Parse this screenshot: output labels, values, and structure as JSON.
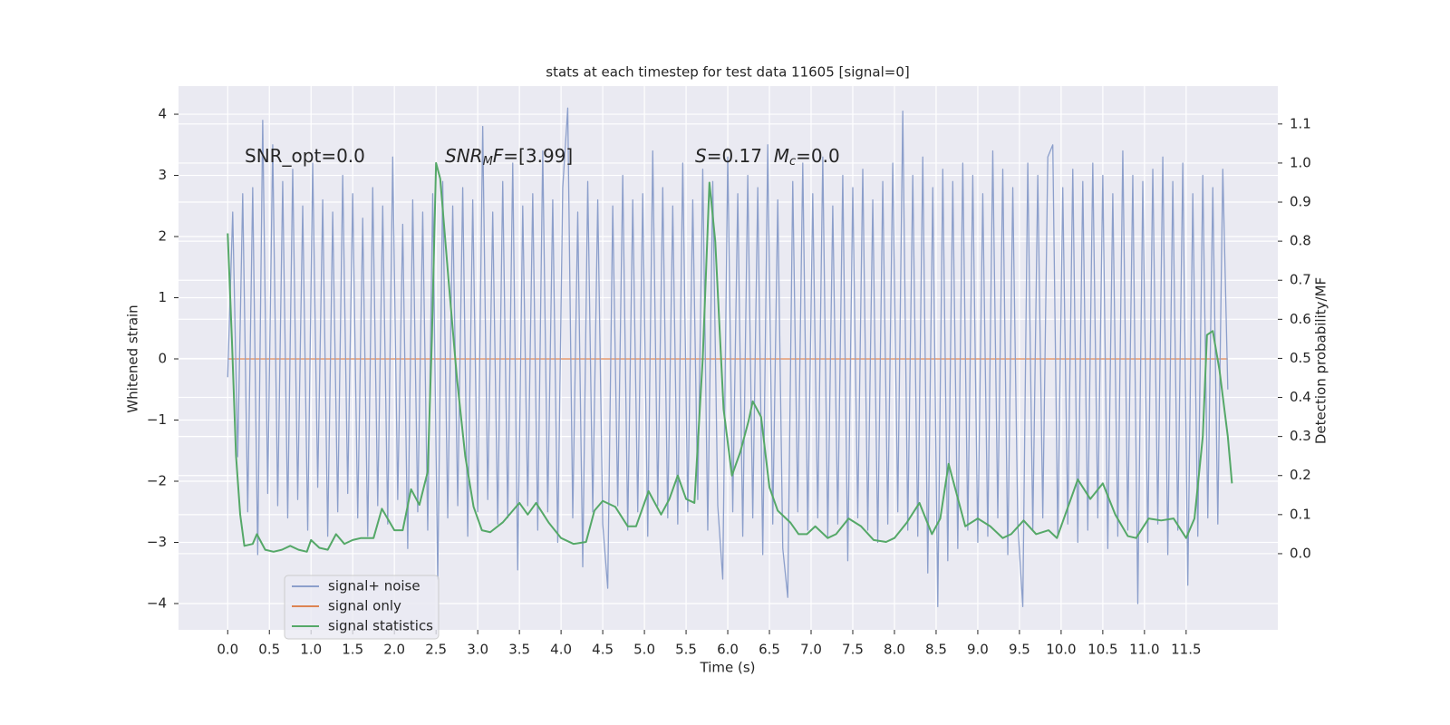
{
  "chart_data": {
    "type": "line",
    "title": "stats at each timestep for test data 11605 [signal=0]",
    "xlabel": "Time (s)",
    "ylabel": "Whitened strain",
    "y2label": "Detection probability/MF",
    "annotations": [
      [
        "SNR_opt=0.0"
      ],
      [
        "SNR",
        "M",
        "F",
        "=[3.99]"
      ],
      [
        "S",
        "=0.17  ",
        "M",
        "c",
        "=0.0"
      ]
    ],
    "grid": true,
    "legend": "lower left",
    "xlim": [
      -0.59,
      12.6
    ],
    "ylim": [
      -4.43,
      4.46
    ],
    "y2lim": [
      -0.195,
      1.197
    ],
    "xticks": [
      {
        "value": 0,
        "label": "0.0"
      },
      0.5,
      {
        "value": 1,
        "label": "1.0"
      },
      1.5,
      {
        "value": 2,
        "label": "2.0"
      },
      2.5,
      {
        "value": 3,
        "label": "3.0"
      },
      3.5,
      {
        "value": 4,
        "label": "4.0"
      },
      4.5,
      {
        "value": 5,
        "label": "5.0"
      },
      5.5,
      {
        "value": 6,
        "label": "6.0"
      },
      6.5,
      {
        "value": 7,
        "label": "7.0"
      },
      7.5,
      {
        "value": 8,
        "label": "8.0"
      },
      8.5,
      {
        "value": 9,
        "label": "9.0"
      },
      9.5,
      {
        "value": 10,
        "label": "10.0"
      },
      10.5,
      {
        "value": 11,
        "label": "11.0"
      },
      11.5
    ],
    "yticks": [
      {
        "value": -4,
        "label": "−4"
      },
      {
        "value": -3,
        "label": "−3"
      },
      {
        "value": -2,
        "label": "−2"
      },
      {
        "value": -1,
        "label": "−1"
      },
      0,
      1,
      2,
      3,
      4
    ],
    "y2ticks": [
      {
        "value": 0,
        "label": "0.0"
      },
      0.1,
      0.2,
      0.3,
      0.4,
      0.5,
      0.6,
      0.7,
      0.8,
      0.9,
      {
        "value": 1,
        "label": "1.0"
      },
      1.1
    ],
    "series": [
      {
        "name": "signal only",
        "color": "#dd8452",
        "x": [
          0,
          12.0
        ],
        "values": [
          0,
          0
        ]
      },
      {
        "name": "signal+ noise",
        "color": "#8c9fcb",
        "x": [
          0,
          0.06,
          0.12,
          0.18,
          0.24,
          0.3,
          0.36,
          0.42,
          0.48,
          0.54,
          0.6,
          0.66,
          0.72,
          0.78,
          0.84,
          0.9,
          0.96,
          1.02,
          1.08,
          1.14,
          1.2,
          1.26,
          1.32,
          1.38,
          1.44,
          1.5,
          1.56,
          1.62,
          1.68,
          1.74,
          1.8,
          1.86,
          1.92,
          1.98,
          2.04,
          2.1,
          2.16,
          2.22,
          2.28,
          2.34,
          2.4,
          2.46,
          2.52,
          2.58,
          2.64,
          2.7,
          2.76,
          2.82,
          2.88,
          2.94,
          3.0,
          3.06,
          3.12,
          3.18,
          3.24,
          3.3,
          3.36,
          3.42,
          3.48,
          3.54,
          3.6,
          3.66,
          3.72,
          3.78,
          3.84,
          3.9,
          3.96,
          4.02,
          4.08,
          4.14,
          4.2,
          4.26,
          4.32,
          4.38,
          4.44,
          4.5,
          4.56,
          4.62,
          4.68,
          4.74,
          4.8,
          4.86,
          4.92,
          4.98,
          5.04,
          5.1,
          5.16,
          5.22,
          5.28,
          5.34,
          5.4,
          5.46,
          5.52,
          5.58,
          5.64,
          5.7,
          5.76,
          5.82,
          5.88,
          5.94,
          6.0,
          6.06,
          6.12,
          6.18,
          6.24,
          6.3,
          6.36,
          6.42,
          6.48,
          6.54,
          6.6,
          6.66,
          6.72,
          6.78,
          6.84,
          6.9,
          6.96,
          7.02,
          7.08,
          7.14,
          7.2,
          7.26,
          7.32,
          7.38,
          7.44,
          7.5,
          7.56,
          7.62,
          7.68,
          7.74,
          7.8,
          7.86,
          7.92,
          7.98,
          8.04,
          8.1,
          8.16,
          8.22,
          8.28,
          8.34,
          8.4,
          8.46,
          8.52,
          8.58,
          8.64,
          8.7,
          8.76,
          8.82,
          8.88,
          8.94,
          9.0,
          9.06,
          9.12,
          9.18,
          9.24,
          9.3,
          9.36,
          9.42,
          9.48,
          9.54,
          9.6,
          9.66,
          9.72,
          9.78,
          9.84,
          9.9,
          9.96,
          10.02,
          10.08,
          10.14,
          10.2,
          10.26,
          10.32,
          10.38,
          10.44,
          10.5,
          10.56,
          10.62,
          10.68,
          10.74,
          10.8,
          10.86,
          10.92,
          10.98,
          11.04,
          11.1,
          11.16,
          11.22,
          11.28,
          11.34,
          11.4,
          11.46,
          11.52,
          11.58,
          11.64,
          11.7,
          11.76,
          11.82,
          11.88,
          11.94,
          12.0
        ],
        "values": [
          -0.3,
          2.4,
          -1.6,
          2.7,
          -2.5,
          2.8,
          -3.2,
          3.9,
          -2.2,
          3.5,
          -2.4,
          2.9,
          -2.6,
          3.1,
          -2.3,
          2.5,
          -2.8,
          3.2,
          -2.1,
          2.6,
          -2.9,
          2.4,
          -2.5,
          3.0,
          -2.2,
          2.7,
          -2.6,
          2.3,
          -2.9,
          2.8,
          -2.4,
          2.5,
          -2.7,
          3.3,
          -2.3,
          2.2,
          -3.1,
          2.6,
          -2.5,
          2.4,
          -2.8,
          2.7,
          -3.6,
          2.9,
          -2.6,
          2.5,
          -2.4,
          2.8,
          -2.9,
          2.6,
          -2.5,
          3.8,
          -2.3,
          2.4,
          -2.7,
          2.9,
          -2.6,
          3.2,
          -3.45,
          2.5,
          -2.4,
          2.7,
          -2.8,
          3.4,
          -2.5,
          2.6,
          -3.0,
          2.8,
          4.1,
          -2.6,
          2.4,
          -3.4,
          2.9,
          -2.5,
          2.6,
          -2.7,
          -3.75,
          2.5,
          -2.4,
          3.0,
          -2.8,
          2.6,
          -2.5,
          2.7,
          -2.9,
          3.4,
          -2.4,
          2.8,
          -2.6,
          2.5,
          -2.7,
          3.2,
          -2.5,
          2.6,
          -2.3,
          3.1,
          -2.8,
          2.9,
          -2.4,
          -3.6,
          3.3,
          -2.5,
          2.7,
          -2.9,
          3.0,
          -2.6,
          2.8,
          -3.2,
          3.5,
          -2.7,
          2.6,
          -3.1,
          -3.9,
          2.9,
          -2.5,
          3.2,
          -2.8,
          2.7,
          -2.6,
          3.3,
          -2.9,
          2.5,
          -2.7,
          3.0,
          -3.3,
          2.8,
          -2.6,
          3.1,
          -2.8,
          2.6,
          -3.0,
          2.9,
          -2.7,
          3.2,
          -2.5,
          4.05,
          -2.8,
          3.0,
          -2.9,
          3.3,
          -3.5,
          2.8,
          -4.05,
          3.1,
          -3.3,
          2.9,
          -3.1,
          3.2,
          -2.8,
          3.0,
          -3.0,
          2.7,
          -2.9,
          3.4,
          -2.6,
          3.1,
          -3.2,
          2.8,
          -2.7,
          -4.05,
          3.2,
          -2.8,
          3.0,
          -2.6,
          3.3,
          3.5,
          -2.9,
          2.8,
          -2.7,
          3.1,
          -3.0,
          2.9,
          -2.8,
          3.2,
          -2.6,
          3.0,
          -3.1,
          2.7,
          -2.9,
          3.4,
          -2.8,
          3.0,
          -4.0,
          2.9,
          -3.0,
          3.1,
          -2.7,
          3.3,
          -3.2,
          2.9,
          -2.8,
          3.2,
          -3.7,
          2.7,
          -2.9,
          3.0,
          -2.6,
          2.8,
          -2.7,
          3.1,
          -0.5
        ]
      },
      {
        "name": "signal statistics",
        "color": "#55a868",
        "axis": "y2",
        "x": [
          0,
          0.05,
          0.1,
          0.15,
          0.2,
          0.3,
          0.35,
          0.45,
          0.55,
          0.65,
          0.75,
          0.85,
          0.95,
          1.0,
          1.1,
          1.2,
          1.3,
          1.4,
          1.5,
          1.6,
          1.75,
          1.85,
          2.0,
          2.1,
          2.2,
          2.3,
          2.4,
          2.45,
          2.5,
          2.55,
          2.65,
          2.75,
          2.85,
          2.95,
          3.05,
          3.15,
          3.3,
          3.5,
          3.6,
          3.7,
          3.85,
          4.0,
          4.15,
          4.3,
          4.4,
          4.5,
          4.65,
          4.8,
          4.9,
          5.05,
          5.2,
          5.3,
          5.4,
          5.5,
          5.6,
          5.7,
          5.78,
          5.85,
          5.95,
          6.05,
          6.15,
          6.25,
          6.3,
          6.4,
          6.5,
          6.6,
          6.75,
          6.85,
          6.95,
          7.05,
          7.2,
          7.3,
          7.45,
          7.6,
          7.75,
          7.9,
          8.0,
          8.15,
          8.3,
          8.45,
          8.55,
          8.65,
          8.75,
          8.85,
          9.0,
          9.15,
          9.3,
          9.4,
          9.55,
          9.7,
          9.85,
          9.95,
          10.05,
          10.2,
          10.35,
          10.5,
          10.65,
          10.8,
          10.9,
          11.05,
          11.2,
          11.35,
          11.5,
          11.6,
          11.7,
          11.75,
          11.82,
          11.9,
          12.0,
          12.05
        ],
        "values": [
          0.82,
          0.55,
          0.25,
          0.1,
          0.02,
          0.025,
          0.05,
          0.01,
          0.005,
          0.01,
          0.02,
          0.01,
          0.005,
          0.035,
          0.015,
          0.01,
          0.05,
          0.025,
          0.035,
          0.04,
          0.04,
          0.115,
          0.06,
          0.06,
          0.165,
          0.125,
          0.21,
          0.55,
          1.0,
          0.96,
          0.7,
          0.45,
          0.25,
          0.12,
          0.06,
          0.055,
          0.08,
          0.13,
          0.1,
          0.13,
          0.08,
          0.04,
          0.025,
          0.03,
          0.11,
          0.135,
          0.12,
          0.07,
          0.07,
          0.16,
          0.1,
          0.14,
          0.2,
          0.14,
          0.13,
          0.5,
          0.95,
          0.8,
          0.37,
          0.2,
          0.26,
          0.34,
          0.39,
          0.35,
          0.17,
          0.11,
          0.08,
          0.05,
          0.05,
          0.07,
          0.04,
          0.05,
          0.09,
          0.07,
          0.035,
          0.03,
          0.04,
          0.08,
          0.13,
          0.05,
          0.09,
          0.23,
          0.15,
          0.07,
          0.09,
          0.07,
          0.04,
          0.05,
          0.085,
          0.05,
          0.06,
          0.04,
          0.1,
          0.19,
          0.14,
          0.18,
          0.1,
          0.045,
          0.04,
          0.09,
          0.085,
          0.09,
          0.04,
          0.09,
          0.3,
          0.56,
          0.57,
          0.47,
          0.3,
          0.18
        ]
      }
    ]
  }
}
